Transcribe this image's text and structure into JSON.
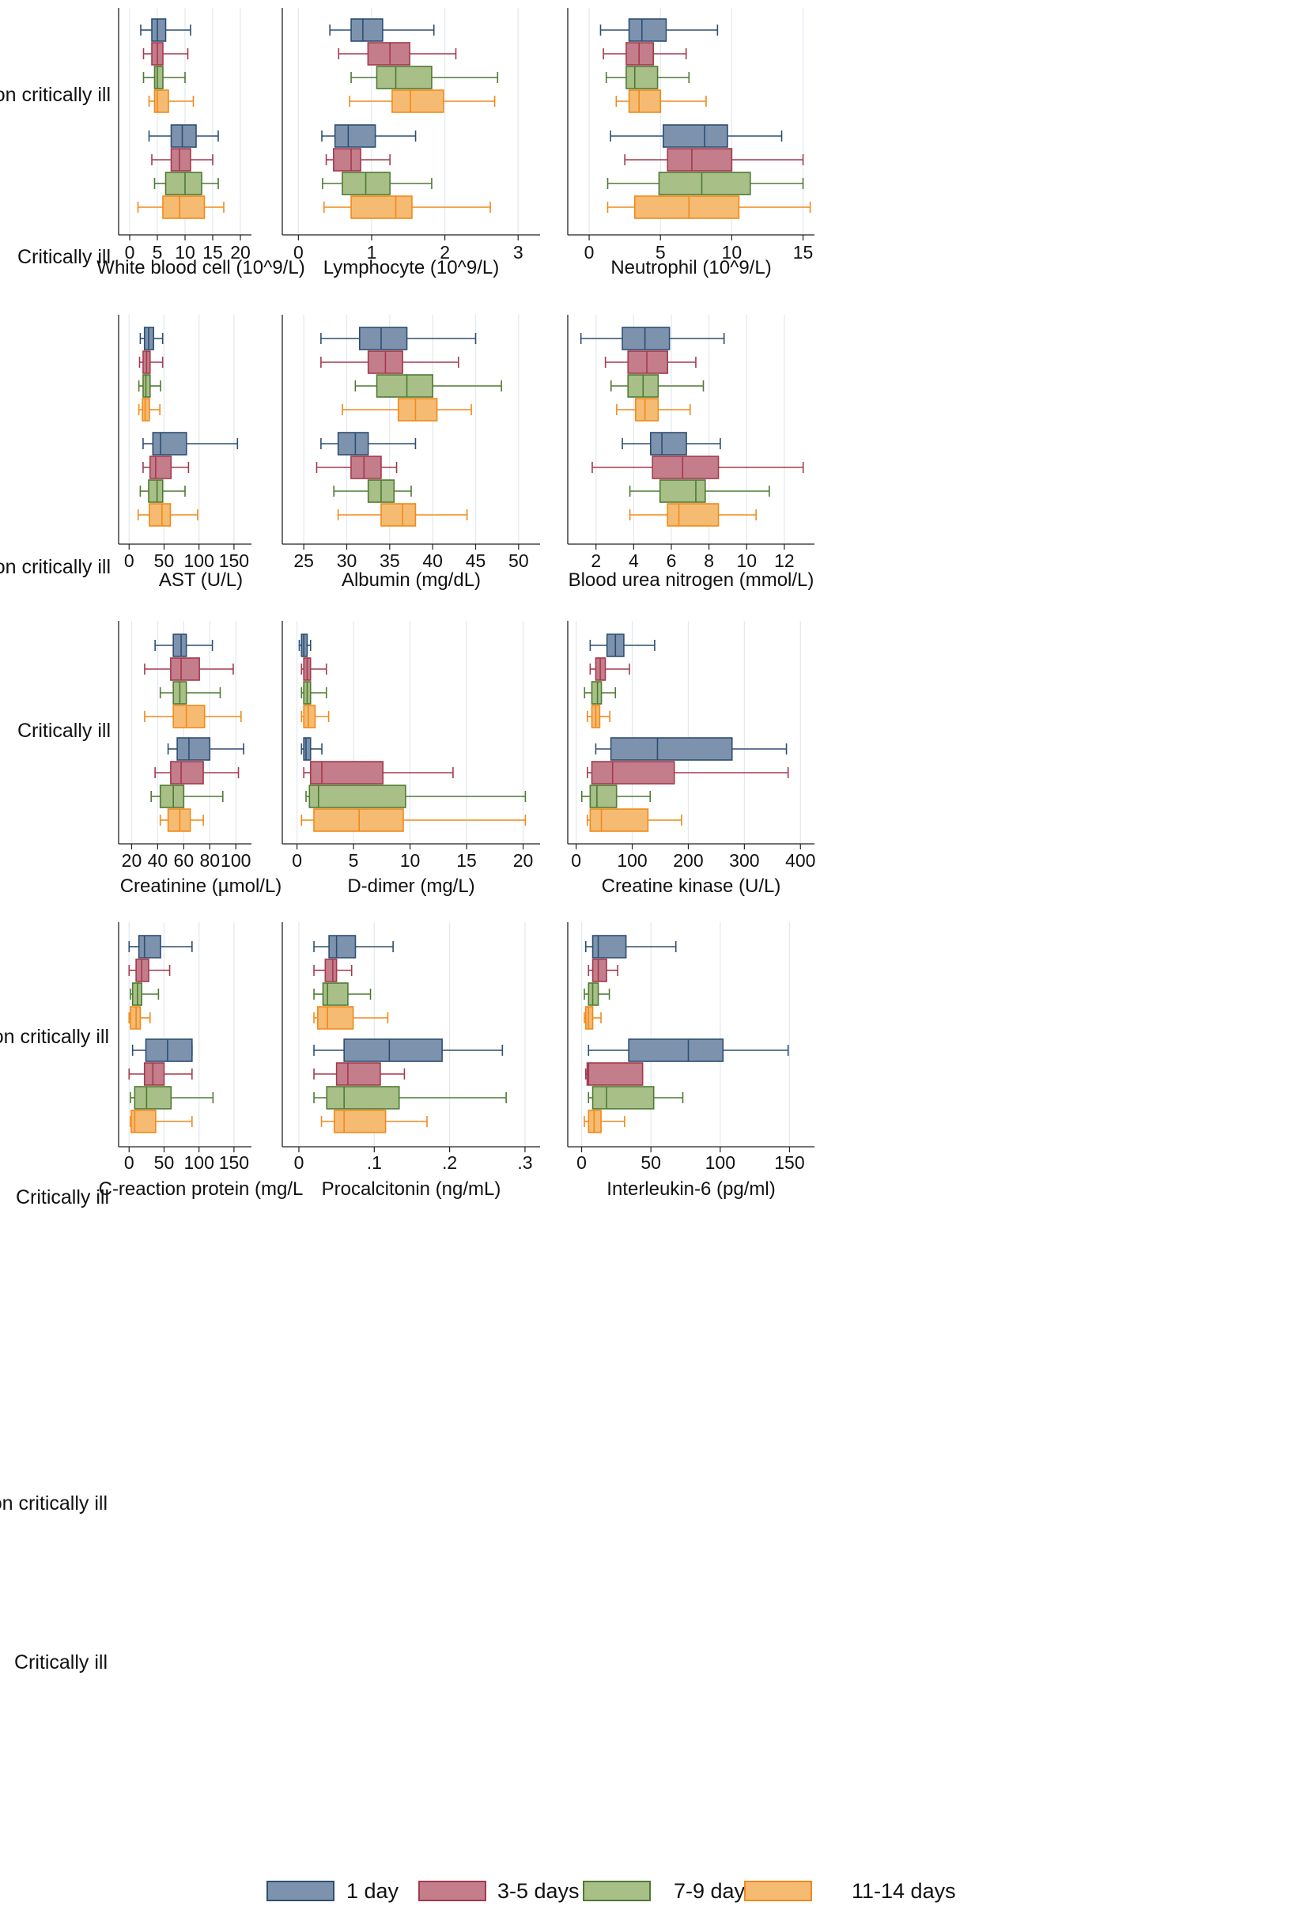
{
  "groups": [
    "Non critically ill",
    "Critically ill"
  ],
  "colors": {
    "1 day": {
      "fill": "#7d93ad",
      "stroke": "#2d4e73"
    },
    "3-5 days": {
      "fill": "#c47d8a",
      "stroke": "#a33a4d"
    },
    "7-9 days": {
      "fill": "#a8bf88",
      "stroke": "#4f7a32"
    },
    "11-14 days": {
      "fill": "#f6bb72",
      "stroke": "#f08a1a"
    }
  },
  "legend": [
    "1 day",
    "3-5 days",
    "7-9 days",
    "11-14 days"
  ],
  "chart_data": [
    {
      "type": "box",
      "xlabel": "White blood cell (10^9/L)",
      "ticks": [
        0,
        5,
        10,
        15,
        20
      ],
      "xlim": [
        -2,
        22
      ],
      "boxes": {
        "Non critically ill": [
          [
            2,
            4,
            5,
            6.5,
            11
          ],
          [
            2.5,
            4,
            5,
            6,
            10.5
          ],
          [
            2.5,
            4.5,
            5,
            6,
            10
          ],
          [
            3.5,
            4.5,
            5,
            7,
            11.5
          ]
        ],
        "Critically ill": [
          [
            3.5,
            7.5,
            9.5,
            12,
            16
          ],
          [
            4,
            7.5,
            9,
            11,
            15
          ],
          [
            4.5,
            6.5,
            10,
            13,
            16
          ],
          [
            1.5,
            6,
            9,
            13.5,
            17
          ]
        ]
      }
    },
    {
      "type": "box",
      "xlabel": "Lymphocyte (10^9/L)",
      "ticks": [
        0,
        1,
        2,
        3
      ],
      "xlim": [
        -0.22,
        3.3
      ],
      "boxes": {
        "Non critically ill": [
          [
            0.43,
            0.72,
            0.88,
            1.15,
            1.85
          ],
          [
            0.55,
            0.95,
            1.25,
            1.52,
            2.15
          ],
          [
            0.72,
            1.07,
            1.33,
            1.82,
            2.72
          ],
          [
            0.7,
            1.28,
            1.53,
            1.98,
            2.68
          ]
        ],
        "Critically ill": [
          [
            0.32,
            0.5,
            0.68,
            1.05,
            1.6
          ],
          [
            0.38,
            0.48,
            0.72,
            0.85,
            1.25
          ],
          [
            0.33,
            0.6,
            0.92,
            1.25,
            1.82
          ],
          [
            0.35,
            0.72,
            1.33,
            1.55,
            2.62
          ]
        ],
        "gap_after_4": true
      }
    },
    {
      "type": "box",
      "xlabel": "Neutrophil (10^9/L)",
      "ticks": [
        0,
        5,
        10,
        15
      ],
      "xlim": [
        -1.5,
        15.8
      ],
      "boxes": {
        "Non critically ill": [
          [
            0.8,
            2.8,
            3.7,
            5.4,
            9
          ],
          [
            1,
            2.6,
            3.5,
            4.5,
            6.8
          ],
          [
            1.2,
            2.6,
            3.2,
            4.8,
            7
          ],
          [
            1.9,
            2.8,
            3.5,
            5,
            8.2
          ]
        ],
        "Critically ill": [
          [
            1.5,
            5.2,
            8.1,
            9.7,
            13.5
          ],
          [
            2.5,
            5.5,
            7.2,
            10,
            15
          ],
          [
            1.3,
            4.9,
            7.9,
            11.3,
            15
          ],
          [
            1.3,
            3.2,
            7,
            10.5,
            15.5
          ]
        ]
      }
    },
    {
      "type": "box",
      "xlabel": "AST (U/L)",
      "ticks": [
        0,
        50,
        100,
        150
      ],
      "xlim": [
        -15,
        175
      ],
      "boxes": {
        "Non critically ill": [
          [
            16,
            22,
            28,
            35,
            48
          ],
          [
            15,
            20,
            25,
            30,
            48
          ],
          [
            14,
            20,
            24,
            30,
            45
          ],
          [
            14,
            19,
            23,
            29,
            44
          ]
        ],
        "Critically ill": [
          [
            20,
            34,
            45,
            82,
            155
          ],
          [
            20,
            30,
            38,
            60,
            85
          ],
          [
            16,
            28,
            40,
            48,
            80
          ],
          [
            13,
            29,
            47,
            59,
            98
          ]
        ]
      }
    },
    {
      "type": "box",
      "xlabel": "Albumin (mg/dL)",
      "ticks": [
        25,
        30,
        35,
        40,
        45,
        50
      ],
      "xlim": [
        22.5,
        52.5
      ],
      "boxes": {
        "Non critically ill": [
          [
            27,
            31.5,
            34,
            37,
            45
          ],
          [
            27,
            32.5,
            34.5,
            36.5,
            43
          ],
          [
            31,
            33.5,
            37,
            40,
            48
          ],
          [
            29.5,
            36,
            38,
            40.5,
            44.5
          ]
        ],
        "Critically ill": [
          [
            27,
            29,
            31,
            32.5,
            38
          ],
          [
            26.5,
            30.5,
            32,
            34,
            35.8
          ],
          [
            28.5,
            32.5,
            34,
            35.5,
            37.5
          ],
          [
            29,
            34,
            36.5,
            38,
            44
          ]
        ]
      }
    },
    {
      "type": "box",
      "xlabel": "Blood urea nitrogen (mmol/L)",
      "ticks": [
        2,
        4,
        6,
        8,
        10,
        12
      ],
      "xlim": [
        0.5,
        13.6
      ],
      "boxes": {
        "Non critically ill": [
          [
            1.2,
            3.4,
            4.6,
            5.9,
            8.8
          ],
          [
            2.5,
            3.7,
            4.7,
            5.8,
            7.3
          ],
          [
            2.8,
            3.7,
            4.5,
            5.3,
            7.7
          ],
          [
            3.1,
            4.1,
            4.6,
            5.3,
            7
          ]
        ],
        "Critically ill": [
          [
            3.4,
            4.9,
            5.5,
            6.8,
            8.6
          ],
          [
            1.8,
            5,
            6.6,
            8.5,
            13
          ],
          [
            3.8,
            5.4,
            7.3,
            7.8,
            11.2
          ],
          [
            3.8,
            5.8,
            6.4,
            8.5,
            10.5
          ]
        ]
      }
    },
    {
      "type": "box",
      "xlabel": "Creatinine (µmol/L)",
      "ticks": [
        20,
        40,
        60,
        80,
        100
      ],
      "xlim": [
        10,
        112
      ],
      "boxes": {
        "Non critically ill": [
          [
            38,
            52,
            58,
            62,
            82
          ],
          [
            30,
            50,
            58,
            72,
            98
          ],
          [
            42,
            52,
            57,
            62,
            88
          ],
          [
            30,
            52,
            62,
            76,
            104
          ]
        ],
        "Critically ill": [
          [
            48,
            55,
            64,
            80,
            106
          ],
          [
            38,
            50,
            58,
            75,
            102
          ],
          [
            35,
            42,
            52,
            60,
            90
          ],
          [
            42,
            48,
            57,
            65,
            75
          ]
        ]
      }
    },
    {
      "type": "box",
      "xlabel": "D-dimer (mg/L)",
      "ticks": [
        0,
        5,
        10,
        15,
        20
      ],
      "xlim": [
        -1.3,
        21.5
      ],
      "boxes": {
        "Non critically ill": [
          [
            0.2,
            0.4,
            0.6,
            0.9,
            1.2
          ],
          [
            0.4,
            0.6,
            0.9,
            1.2,
            2.6
          ],
          [
            0.4,
            0.6,
            0.9,
            1.2,
            2.6
          ],
          [
            0.4,
            0.6,
            1,
            1.6,
            2.8
          ]
        ],
        "Critically ill": [
          [
            0.4,
            0.6,
            0.8,
            1.2,
            2.2
          ],
          [
            0.6,
            1.2,
            2.2,
            7.6,
            13.8
          ],
          [
            0.8,
            1.1,
            1.9,
            9.6,
            20.2
          ],
          [
            0.4,
            1.5,
            5.5,
            9.4,
            20.2
          ]
        ]
      }
    },
    {
      "type": "box",
      "xlabel": "Creatine kinase (U/L)",
      "ticks": [
        0,
        100,
        200,
        300,
        400
      ],
      "xlim": [
        -15,
        425
      ],
      "boxes": {
        "Non critically ill": [
          [
            25,
            55,
            70,
            85,
            140
          ],
          [
            25,
            35,
            43,
            52,
            95
          ],
          [
            15,
            28,
            38,
            45,
            70
          ],
          [
            20,
            28,
            35,
            42,
            60
          ]
        ],
        "Critically ill": [
          [
            35,
            62,
            145,
            278,
            375
          ],
          [
            20,
            28,
            65,
            175,
            378
          ],
          [
            10,
            25,
            37,
            72,
            132
          ],
          [
            20,
            25,
            45,
            128,
            188
          ]
        ]
      }
    },
    {
      "type": "box",
      "xlabel": "C-reaction protein (mg/L",
      "ticks": [
        0,
        50,
        100,
        150
      ],
      "xlim": [
        -15,
        175
      ],
      "boxes": {
        "Non critically ill": [
          [
            0,
            14,
            22,
            45,
            90
          ],
          [
            0,
            10,
            18,
            28,
            58
          ],
          [
            2,
            5,
            12,
            18,
            42
          ],
          [
            0,
            2,
            10,
            16,
            30
          ]
        ],
        "Critically ill": [
          [
            5,
            24,
            55,
            90,
            90
          ],
          [
            0,
            22,
            34,
            50,
            90
          ],
          [
            2,
            8,
            25,
            60,
            120
          ],
          [
            2,
            3,
            8,
            38,
            90
          ]
        ]
      }
    },
    {
      "type": "box",
      "xlabel": "Procalcitonin (ng/mL)",
      "ticks": [
        0,
        0.1,
        0.2,
        0.3
      ],
      "ticklabels": [
        "0",
        ".1",
        ".2",
        ".3"
      ],
      "xlim": [
        -0.022,
        0.32
      ],
      "boxes": {
        "Non critically ill": [
          [
            0.02,
            0.04,
            0.05,
            0.075,
            0.125
          ],
          [
            0.02,
            0.035,
            0.045,
            0.05,
            0.07
          ],
          [
            0.02,
            0.032,
            0.038,
            0.065,
            0.095
          ],
          [
            0.02,
            0.025,
            0.038,
            0.072,
            0.118
          ]
        ],
        "Critically ill": [
          [
            0.02,
            0.06,
            0.12,
            0.19,
            0.27
          ],
          [
            0.02,
            0.05,
            0.065,
            0.108,
            0.14
          ],
          [
            0.02,
            0.037,
            0.06,
            0.133,
            0.275
          ],
          [
            0.03,
            0.047,
            0.06,
            0.115,
            0.17
          ]
        ]
      }
    },
    {
      "type": "box",
      "xlabel": "Interleukin-6 (pg/ml)",
      "ticks": [
        0,
        50,
        100,
        150
      ],
      "xlim": [
        -10,
        168
      ],
      "boxes": {
        "Non critically ill": [
          [
            3,
            8,
            12,
            32,
            68
          ],
          [
            5,
            8,
            12,
            18,
            26
          ],
          [
            2,
            5,
            8,
            12,
            20
          ],
          [
            2,
            3,
            5,
            8,
            14
          ]
        ],
        "Critically ill": [
          [
            5,
            34,
            77,
            102,
            149
          ],
          [
            3,
            4,
            5,
            44,
            44
          ],
          [
            5,
            8,
            18,
            52,
            73
          ],
          [
            2,
            5,
            9,
            14,
            31
          ]
        ]
      }
    }
  ]
}
